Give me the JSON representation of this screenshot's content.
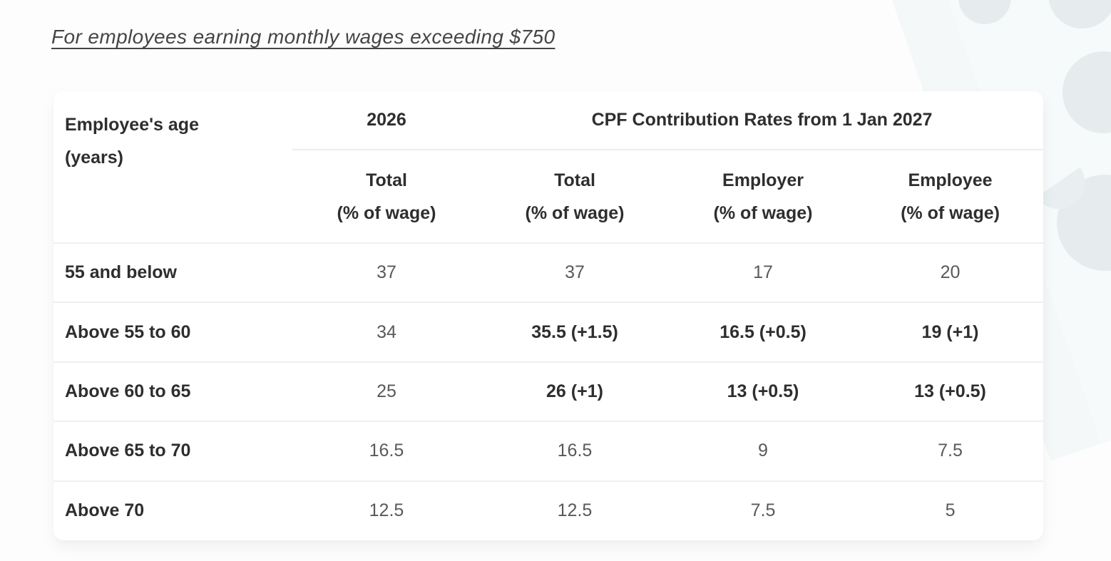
{
  "page": {
    "title": "For employees earning monthly wages exceeding $750"
  },
  "table": {
    "header": {
      "age_line1": "Employee's age",
      "age_line2": "(years)",
      "col_2026": "2026",
      "col_2027": "CPF Contribution Rates from 1 Jan 2027",
      "subheaders": [
        {
          "line1": "Total",
          "line2": "(% of wage)"
        },
        {
          "line1": "Total",
          "line2": "(% of wage)"
        },
        {
          "line1": "Employer",
          "line2": "(% of wage)"
        },
        {
          "line1": "Employee",
          "line2": "(% of wage)"
        }
      ]
    },
    "rows": [
      {
        "age": "55 and below",
        "cells": [
          {
            "text": "37",
            "changed": false
          },
          {
            "text": "37",
            "changed": false
          },
          {
            "text": "17",
            "changed": false
          },
          {
            "text": "20",
            "changed": false
          }
        ]
      },
      {
        "age": "Above 55 to 60",
        "cells": [
          {
            "text": "34",
            "changed": false
          },
          {
            "text": "35.5 (+1.5)",
            "changed": true
          },
          {
            "text": "16.5 (+0.5)",
            "changed": true
          },
          {
            "text": "19 (+1)",
            "changed": true
          }
        ]
      },
      {
        "age": "Above 60 to 65",
        "cells": [
          {
            "text": "25",
            "changed": false
          },
          {
            "text": "26 (+1)",
            "changed": true
          },
          {
            "text": "13 (+0.5)",
            "changed": true
          },
          {
            "text": "13 (+0.5)",
            "changed": true
          }
        ]
      },
      {
        "age": "Above 65 to 70",
        "cells": [
          {
            "text": "16.5",
            "changed": false
          },
          {
            "text": "16.5",
            "changed": false
          },
          {
            "text": "9",
            "changed": false
          },
          {
            "text": "7.5",
            "changed": false
          }
        ]
      },
      {
        "age": "Above 70",
        "cells": [
          {
            "text": "12.5",
            "changed": false
          },
          {
            "text": "12.5",
            "changed": false
          },
          {
            "text": "7.5",
            "changed": false
          },
          {
            "text": "5",
            "changed": false
          }
        ]
      }
    ]
  },
  "colors": {
    "card_background": "#ffffff",
    "page_background": "#fdfdfd",
    "watermark_circle": "#e6eced",
    "watermark_band": "#f4f8f8",
    "divider": "#ececec",
    "text_dark": "#2e2e2e",
    "text_gray": "#58595b"
  }
}
